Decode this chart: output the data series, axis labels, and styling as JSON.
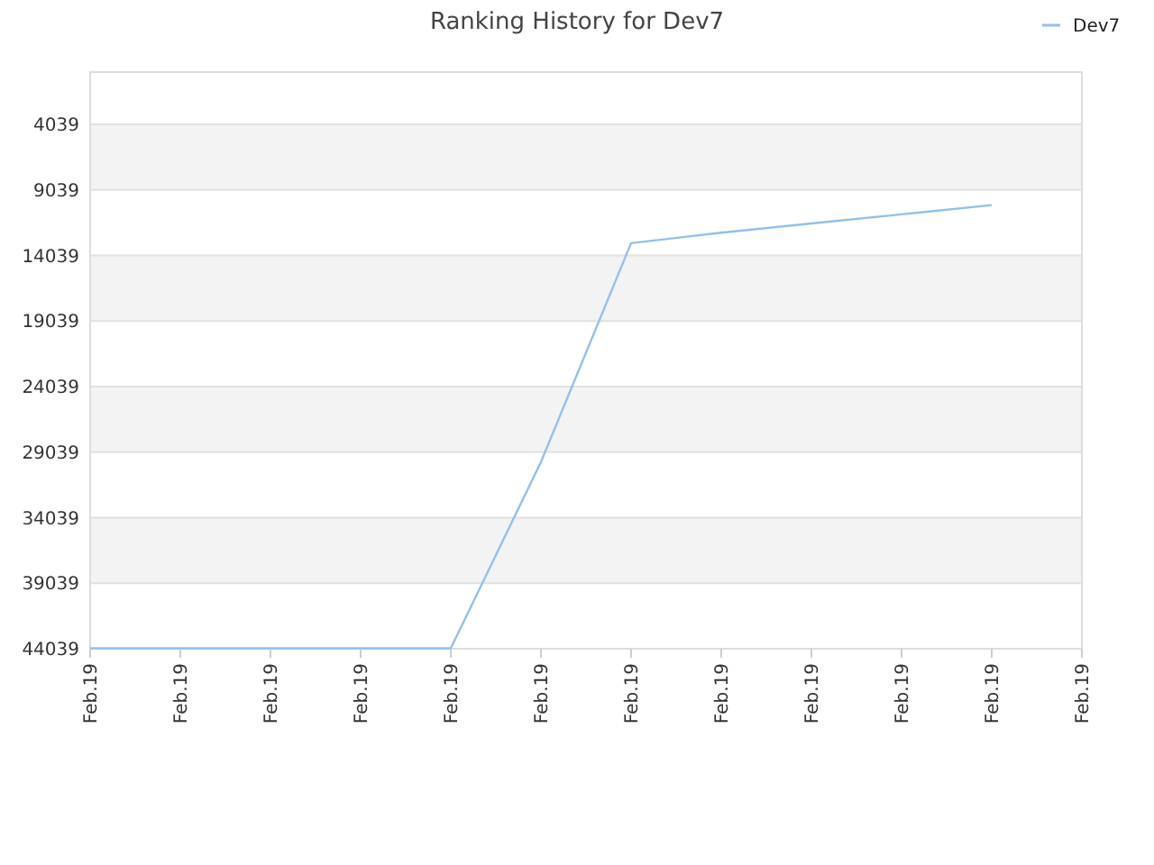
{
  "chart_data": {
    "type": "line",
    "title": "Ranking History for Dev7",
    "categories": [
      "Feb.19",
      "Feb.19",
      "Feb.19",
      "Feb.19",
      "Feb.19",
      "Feb.19",
      "Feb.19",
      "Feb.19",
      "Feb.19",
      "Feb.19",
      "Feb.19",
      "Feb.19"
    ],
    "series": [
      {
        "name": "Dev7",
        "color": "#8fc1f0",
        "values": [
          44000,
          44000,
          44000,
          44000,
          44000,
          29800,
          13100,
          12300,
          11600,
          10900,
          10200,
          null
        ]
      }
    ],
    "ylim": [
      44039,
      50
    ],
    "yticks": [
      4039,
      9039,
      14039,
      19039,
      24039,
      29039,
      34039,
      39039,
      44039
    ],
    "grid": "y",
    "legend": "top right",
    "marker": "none",
    "line_style": "solid"
  }
}
